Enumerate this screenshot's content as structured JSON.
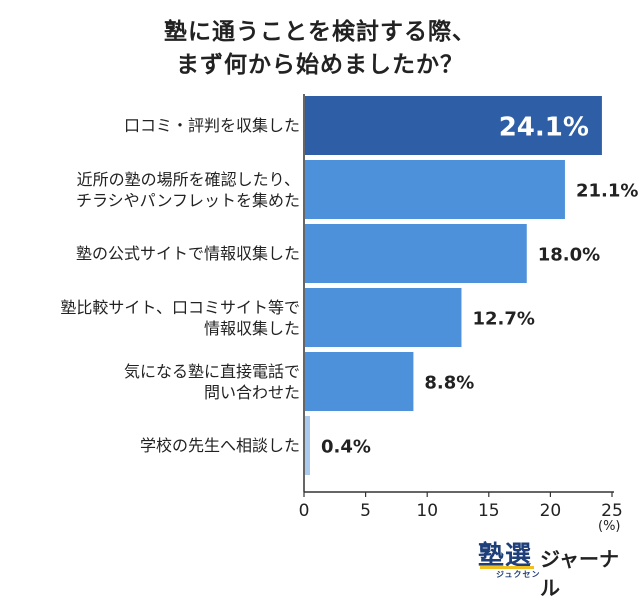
{
  "title": {
    "line1": "塾に通うことを検討する際、",
    "line2": "まず何から始めましたか？"
  },
  "chart_data": {
    "type": "bar",
    "orientation": "horizontal",
    "categories": [
      [
        "口コミ・評判を収集した"
      ],
      [
        "近所の塾の場所を確認したり、",
        "チラシやパンフレットを集めた"
      ],
      [
        "塾の公式サイトで情報収集した"
      ],
      [
        "塾比較サイト、口コミサイト等で",
        "情報収集した"
      ],
      [
        "気になる塾に直接電話で",
        "問い合わせた"
      ],
      [
        "学校の先生へ相談した"
      ]
    ],
    "values": [
      24.1,
      21.1,
      18.0,
      12.7,
      8.8,
      0.4
    ],
    "value_labels": [
      "24.1%",
      "21.1%",
      "18.0%",
      "12.7%",
      "8.8%",
      "0.4%"
    ],
    "xlim": [
      0,
      25
    ],
    "xticks": [
      "0",
      "5",
      "10",
      "15",
      "20",
      "25"
    ],
    "unit_label": "(%)",
    "grid": false,
    "colors": {
      "highlight": "#2d5ea6",
      "bar": "#4d91db",
      "small_bar": "#aacbee",
      "axis": "#333333"
    }
  },
  "logo": {
    "main": "塾選",
    "sub": "ジュクセン",
    "right": "ジャーナル"
  }
}
